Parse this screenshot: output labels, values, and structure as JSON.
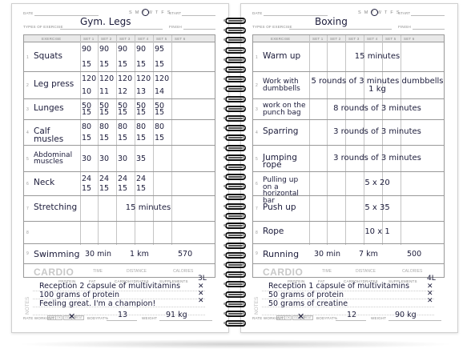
{
  "header_labels": {
    "date": "DATE",
    "start": "START",
    "types": "TYPES OF EXERCISE",
    "finish": "FINISH",
    "days": "S M T W T F S"
  },
  "columns": [
    "EXERCISE",
    "SET 1",
    "SET 2",
    "SET 3",
    "SET 4",
    "SET 5",
    "SET 6"
  ],
  "cardio_labels": {
    "cardio": "CARDIO",
    "time": "TIME",
    "distance": "DISTANCE",
    "calories": "CALORIES"
  },
  "nutrition_labels": [
    "PROTEIN",
    "FAT",
    "CARBOHYDRATES",
    "SUPPLEMENTS"
  ],
  "notes_label": "NOTES",
  "rate_labels": {
    "rate": "RATE WORKOUT",
    "bodyfat": "BODYFAT%",
    "weight": "WEIGHT"
  },
  "rate_options": [
    "BAD",
    "OK",
    "GOOD",
    "GREAT"
  ],
  "left": {
    "title": "Gym. Legs",
    "exercises": [
      {
        "num": "1",
        "name": "Squats",
        "reps": [
          "90",
          "90",
          "90",
          "90",
          "95"
        ],
        "sets": [
          "15",
          "15",
          "15",
          "15",
          "15"
        ]
      },
      {
        "num": "2",
        "name": "Leg press",
        "reps": [
          "120",
          "120",
          "120",
          "120",
          "120"
        ],
        "sets": [
          "10",
          "11",
          "12",
          "13",
          "14"
        ]
      },
      {
        "num": "3",
        "name": "Lunges",
        "reps": [
          "50",
          "50",
          "50",
          "50",
          "50"
        ],
        "sets": [
          "15",
          "15",
          "15",
          "15",
          "15"
        ]
      },
      {
        "num": "4",
        "name": "Calf musles",
        "reps": [
          "80",
          "80",
          "80",
          "80",
          "80"
        ],
        "sets": [
          "15",
          "15",
          "15",
          "15",
          "15"
        ]
      },
      {
        "num": "5",
        "name": "Abdominal muscles",
        "reps": [
          "30",
          "30",
          "30",
          "35"
        ],
        "sets": []
      },
      {
        "num": "6",
        "name": "Neck",
        "reps": [
          "24",
          "24",
          "24",
          "24"
        ],
        "sets": [
          "15",
          "15",
          "15",
          "15"
        ]
      },
      {
        "num": "7",
        "name": "Stretching",
        "span": "15 minutes"
      },
      {
        "num": "8",
        "name": ""
      }
    ],
    "cardio": {
      "name": "Swimming",
      "time": "30 min",
      "distance": "1 km",
      "calories": "570"
    },
    "notes": [
      "Reception 2 capsule of multivitamins",
      "100 grams of protein",
      "Feeling great. I'm a champion!"
    ],
    "water": "3L",
    "bodyfat": "13",
    "weight": "91 kg"
  },
  "right": {
    "title": "Boxing",
    "exercises": [
      {
        "num": "1",
        "name": "Warm up",
        "span": "15 minutes"
      },
      {
        "num": "2",
        "name": "Work with dumbbells",
        "span": "5 rounds of 3 minutes dumbbells 1 kg"
      },
      {
        "num": "3",
        "name": "work on the punch bag",
        "span": "8 rounds of 3 minutes"
      },
      {
        "num": "4",
        "name": "Sparring",
        "span": "3 rounds of 3 minutes"
      },
      {
        "num": "5",
        "name": "Jumping rope",
        "span": "3 rounds of 3 minutes"
      },
      {
        "num": "6",
        "name": "Pulling up on a horizontal bar",
        "span": "5 x 20"
      },
      {
        "num": "7",
        "name": "Push up",
        "span": "5 x 35"
      },
      {
        "num": "8",
        "name": "Rope",
        "span": "10 x 1"
      }
    ],
    "cardio": {
      "name": "Running",
      "time": "30 min",
      "distance": "7 km",
      "calories": "500"
    },
    "notes": [
      "Reception 1 capsule of multivitamins",
      "50 grams of protein",
      "50 grams of creatine"
    ],
    "water": "4L",
    "bodyfat": "12",
    "weight": "90 kg"
  }
}
